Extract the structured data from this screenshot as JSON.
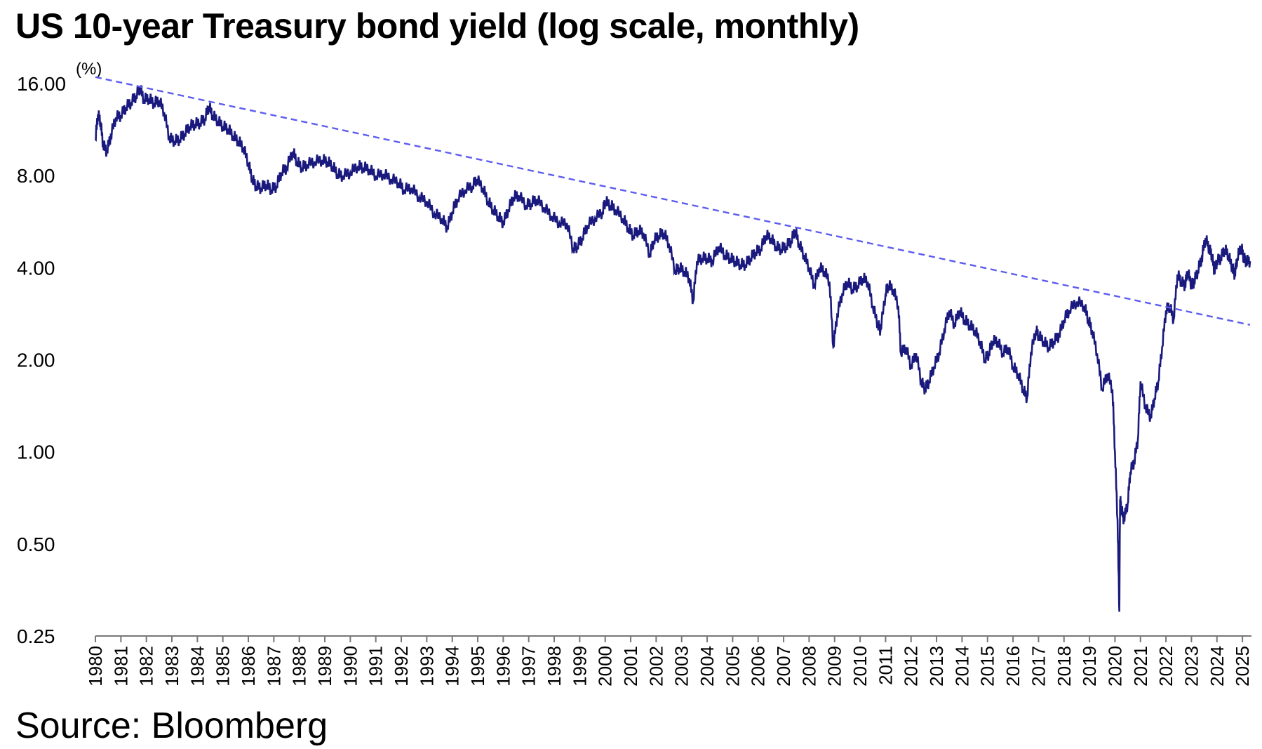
{
  "title": "US 10-year Treasury bond yield (log scale, monthly)",
  "source": "Source: Bloomberg",
  "colors": {
    "series": "#1a1a7e",
    "trendline": "#5c5cf0",
    "axis": "#777777"
  },
  "chart_data": {
    "type": "line",
    "y_scale": "log",
    "ylim": [
      0.25,
      16
    ],
    "y_unit": "(%)",
    "y_ticks": [
      16,
      8,
      4,
      2,
      1,
      0.5,
      0.25
    ],
    "y_tick_labels": [
      "16.00",
      "8.00",
      "4.00",
      "2.00",
      "1.00",
      "0.50",
      "0.25"
    ],
    "x_range": [
      1980,
      2025.3
    ],
    "x_ticks": [
      1980,
      1981,
      1982,
      1983,
      1984,
      1985,
      1986,
      1987,
      1988,
      1989,
      1990,
      1991,
      1992,
      1993,
      1994,
      1995,
      1996,
      1997,
      1998,
      1999,
      2000,
      2001,
      2002,
      2003,
      2004,
      2005,
      2006,
      2007,
      2008,
      2009,
      2010,
      2011,
      2012,
      2013,
      2014,
      2015,
      2016,
      2017,
      2018,
      2019,
      2020,
      2021,
      2022,
      2023,
      2024,
      2025
    ],
    "x_tick_labels": [
      "1980",
      "1981",
      "1982",
      "1983",
      "1984",
      "1985",
      "1986",
      "1987",
      "1988",
      "1989",
      "1990",
      "1991",
      "1992",
      "1993",
      "1994",
      "1995",
      "1996",
      "1997",
      "1998",
      "1999",
      "2000",
      "2001",
      "2002",
      "2003",
      "2004",
      "2005",
      "2006",
      "2007",
      "2008",
      "2009",
      "2010",
      "2011",
      "2012",
      "2013",
      "2014",
      "2015",
      "2016",
      "2017",
      "2018",
      "2019",
      "2020",
      "2021",
      "2022",
      "2023",
      "2024",
      "2025"
    ],
    "grid": false,
    "series": [
      {
        "x": [
          1980.0,
          1980.1,
          1980.2,
          1980.3,
          1980.45,
          1980.6,
          1980.8,
          1981.0,
          1981.2,
          1981.4,
          1981.6,
          1981.75,
          1981.9,
          1982.1,
          1982.3,
          1982.5,
          1982.7,
          1982.9,
          1983.1,
          1983.3,
          1983.5,
          1983.7,
          1983.9,
          1984.1,
          1984.3,
          1984.45,
          1984.6,
          1984.8,
          1985.0,
          1985.2,
          1985.4,
          1985.6,
          1985.8,
          1986.0,
          1986.15,
          1986.3,
          1986.5,
          1986.7,
          1986.9,
          1987.1,
          1987.3,
          1987.5,
          1987.75,
          1987.9,
          1988.1,
          1988.3,
          1988.6,
          1988.9,
          1989.1,
          1989.3,
          1989.5,
          1989.7,
          1990.0,
          1990.3,
          1990.5,
          1990.75,
          1991.0,
          1991.3,
          1991.6,
          1991.9,
          1992.1,
          1992.4,
          1992.7,
          1993.0,
          1993.3,
          1993.6,
          1993.8,
          1994.0,
          1994.2,
          1994.5,
          1994.8,
          1994.95,
          1995.2,
          1995.4,
          1995.6,
          1995.8,
          1996.0,
          1996.2,
          1996.4,
          1996.6,
          1996.9,
          1997.1,
          1997.3,
          1997.6,
          1997.9,
          1998.2,
          1998.5,
          1998.75,
          1998.9,
          1999.1,
          1999.3,
          1999.6,
          1999.9,
          2000.0,
          2000.2,
          2000.4,
          2000.7,
          2000.9,
          2001.1,
          2001.3,
          2001.5,
          2001.75,
          2001.9,
          2002.1,
          2002.3,
          2002.5,
          2002.75,
          2002.9,
          2003.1,
          2003.3,
          2003.45,
          2003.6,
          2003.8,
          2004.0,
          2004.2,
          2004.45,
          2004.7,
          2004.9,
          2005.1,
          2005.3,
          2005.5,
          2005.7,
          2005.9,
          2006.1,
          2006.3,
          2006.5,
          2006.7,
          2006.9,
          2007.1,
          2007.3,
          2007.45,
          2007.6,
          2007.8,
          2008.0,
          2008.2,
          2008.4,
          2008.6,
          2008.8,
          2008.95,
          2009.1,
          2009.3,
          2009.5,
          2009.7,
          2009.9,
          2010.1,
          2010.3,
          2010.5,
          2010.7,
          2010.8,
          2011.0,
          2011.1,
          2011.3,
          2011.5,
          2011.6,
          2011.8,
          2012.0,
          2012.2,
          2012.4,
          2012.55,
          2012.7,
          2012.9,
          2013.1,
          2013.3,
          2013.5,
          2013.7,
          2013.9,
          2014.1,
          2014.3,
          2014.5,
          2014.7,
          2014.9,
          2015.05,
          2015.2,
          2015.4,
          2015.6,
          2015.8,
          2016.0,
          2016.2,
          2016.4,
          2016.55,
          2016.7,
          2016.9,
          2017.0,
          2017.2,
          2017.4,
          2017.6,
          2017.8,
          2018.0,
          2018.2,
          2018.5,
          2018.8,
          2018.95,
          2019.1,
          2019.3,
          2019.5,
          2019.7,
          2019.9,
          2020.0,
          2020.1,
          2020.17,
          2020.2,
          2020.25,
          2020.35,
          2020.5,
          2020.6,
          2020.75,
          2020.9,
          2021.0,
          2021.2,
          2021.4,
          2021.55,
          2021.7,
          2021.85,
          2022.0,
          2022.15,
          2022.3,
          2022.45,
          2022.6,
          2022.75,
          2022.85,
          2023.0,
          2023.1,
          2023.25,
          2023.4,
          2023.55,
          2023.7,
          2023.8,
          2023.9,
          2024.0,
          2024.15,
          2024.3,
          2024.45,
          2024.6,
          2024.7,
          2024.8,
          2024.95,
          2025.05,
          2025.15,
          2025.3
        ],
        "y": [
          10.5,
          12.7,
          12.0,
          10.1,
          9.6,
          10.8,
          12.4,
          12.6,
          13.4,
          13.9,
          14.6,
          15.5,
          14.2,
          14.3,
          13.8,
          14.1,
          12.9,
          10.6,
          10.4,
          10.5,
          11.0,
          11.6,
          11.8,
          11.9,
          12.3,
          13.5,
          12.6,
          12.1,
          11.6,
          11.4,
          10.8,
          10.4,
          9.9,
          8.8,
          7.8,
          7.4,
          7.3,
          7.5,
          7.2,
          7.4,
          8.2,
          8.5,
          9.6,
          8.9,
          8.5,
          8.7,
          8.9,
          9.0,
          8.9,
          8.6,
          8.1,
          8.0,
          8.2,
          8.6,
          8.5,
          8.4,
          8.0,
          8.1,
          7.8,
          7.6,
          7.2,
          7.3,
          6.8,
          6.6,
          6.0,
          5.8,
          5.4,
          6.1,
          6.7,
          7.2,
          7.4,
          7.8,
          7.3,
          6.6,
          6.2,
          5.9,
          5.6,
          6.2,
          6.8,
          6.9,
          6.4,
          6.5,
          6.7,
          6.3,
          5.9,
          5.6,
          5.6,
          4.6,
          4.7,
          5.0,
          5.5,
          5.8,
          6.1,
          6.6,
          6.4,
          6.2,
          5.8,
          5.4,
          5.1,
          5.3,
          5.2,
          4.4,
          4.9,
          5.1,
          5.2,
          4.8,
          3.9,
          4.0,
          3.9,
          3.7,
          3.1,
          4.2,
          4.3,
          4.3,
          4.2,
          4.7,
          4.4,
          4.3,
          4.2,
          4.1,
          4.1,
          4.3,
          4.5,
          4.6,
          5.1,
          5.0,
          4.7,
          4.6,
          4.7,
          4.9,
          5.3,
          4.8,
          4.4,
          4.0,
          3.5,
          4.0,
          3.9,
          3.6,
          2.2,
          2.8,
          3.3,
          3.6,
          3.4,
          3.5,
          3.7,
          3.6,
          3.0,
          2.6,
          2.5,
          3.3,
          3.5,
          3.4,
          3.0,
          2.1,
          2.2,
          1.9,
          2.1,
          1.7,
          1.6,
          1.7,
          1.9,
          2.1,
          2.5,
          2.9,
          2.6,
          2.9,
          2.7,
          2.6,
          2.5,
          2.3,
          2.0,
          2.1,
          2.3,
          2.3,
          2.1,
          2.2,
          1.9,
          1.8,
          1.6,
          1.5,
          2.1,
          2.5,
          2.4,
          2.3,
          2.2,
          2.3,
          2.4,
          2.7,
          2.9,
          3.1,
          3.0,
          2.7,
          2.5,
          2.1,
          1.6,
          1.8,
          1.6,
          1.0,
          0.6,
          0.3,
          0.7,
          0.65,
          0.6,
          0.68,
          0.86,
          0.93,
          1.1,
          1.7,
          1.4,
          1.3,
          1.5,
          1.7,
          2.2,
          2.9,
          3.0,
          2.7,
          3.8,
          3.6,
          3.5,
          3.9,
          3.5,
          3.6,
          3.9,
          4.3,
          5.0,
          4.6,
          4.4,
          3.9,
          4.2,
          4.3,
          4.6,
          4.4,
          4.0,
          3.8,
          4.3,
          4.7,
          4.3,
          4.2,
          4.2
        ]
      }
    ],
    "trendline": {
      "x": [
        1980,
        2025.3
      ],
      "y": [
        16.8,
        2.6
      ]
    }
  }
}
